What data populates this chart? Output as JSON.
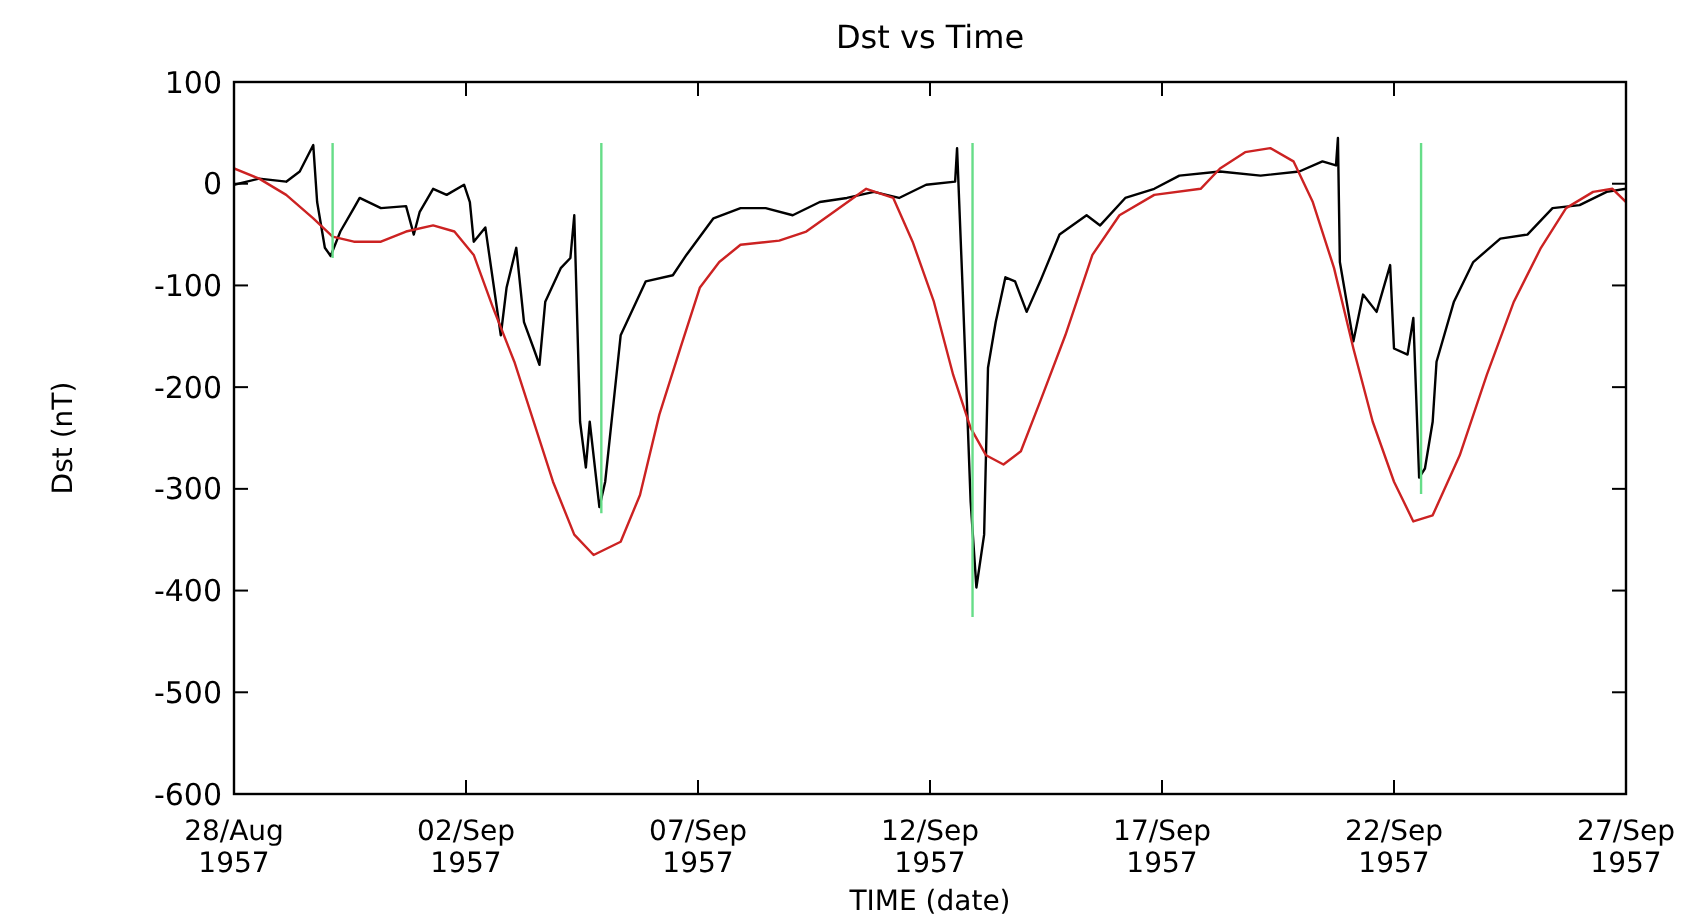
{
  "chart_data": {
    "type": "line",
    "title": "Dst vs Time",
    "xlabel": "TIME (date)",
    "ylabel": "Dst (nT)",
    "xlim": [
      "1957-08-28",
      "1957-09-27"
    ],
    "xticks": [
      {
        "value": "1957-08-28",
        "label": "28/Aug\n1957"
      },
      {
        "value": "1957-09-02",
        "label": "02/Sep\n1957"
      },
      {
        "value": "1957-09-07",
        "label": "07/Sep\n1957"
      },
      {
        "value": "1957-09-12",
        "label": "12/Sep\n1957"
      },
      {
        "value": "1957-09-17",
        "label": "17/Sep\n1957"
      },
      {
        "value": "1957-09-22",
        "label": "22/Sep\n1957"
      },
      {
        "value": "1957-09-27",
        "label": "27/Sep\n1957"
      }
    ],
    "ylim": [
      -600,
      100
    ],
    "yticks": [
      -600,
      -500,
      -400,
      -300,
      -200,
      -100,
      0,
      100
    ],
    "line_style": "solid",
    "marker": "none",
    "series": [
      {
        "color": "#000000",
        "x": [
          "1957-08-28T00:00",
          "1957-08-28T13:00",
          "1957-08-29T03:00",
          "1957-08-29T10:00",
          "1957-08-29T17:00",
          "1957-08-29T19:00",
          "1957-08-29T23:00",
          "1957-08-30T02:00",
          "1957-08-30T07:00",
          "1957-08-30T14:00",
          "1957-08-30T17:00",
          "1957-08-31T04:00",
          "1957-08-31T17:00",
          "1957-08-31T21:00",
          "1957-09-01T00:00",
          "1957-09-01T07:00",
          "1957-09-01T14:00",
          "1957-09-01T23:00",
          "1957-09-02T02:00",
          "1957-09-02T04:00",
          "1957-09-02T10:00",
          "1957-09-02T18:00",
          "1957-09-02T21:00",
          "1957-09-03T02:00",
          "1957-09-03T06:00",
          "1957-09-03T11:00",
          "1957-09-03T14:00",
          "1957-09-03T17:00",
          "1957-09-04T01:00",
          "1957-09-04T06:00",
          "1957-09-04T08:00",
          "1957-09-04T11:00",
          "1957-09-04T14:00",
          "1957-09-04T16:00",
          "1957-09-04T21:00",
          "1957-09-05T00:00",
          "1957-09-05T08:00",
          "1957-09-05T21:00",
          "1957-09-06T11:00",
          "1957-09-06T18:00",
          "1957-09-07T08:00",
          "1957-09-07T22:00",
          "1957-09-08T11:00",
          "1957-09-09T01:00",
          "1957-09-09T15:00",
          "1957-09-10T05:00",
          "1957-09-10T19:00",
          "1957-09-11T08:00",
          "1957-09-11T22:00",
          "1957-09-12T13:00",
          "1957-09-12T14:00",
          "1957-09-12T17:00",
          "1957-09-12T21:00",
          "1957-09-13T00:00",
          "1957-09-13T04:00",
          "1957-09-13T06:00",
          "1957-09-13T10:00",
          "1957-09-13T15:00",
          "1957-09-13T20:00",
          "1957-09-14T02:00",
          "1957-09-14T09:00",
          "1957-09-14T19:00",
          "1957-09-15T09:00",
          "1957-09-15T16:00",
          "1957-09-16T05:00",
          "1957-09-16T20:00",
          "1957-09-17T09:00",
          "1957-09-18T06:00",
          "1957-09-19T03:00",
          "1957-09-19T23:00",
          "1957-09-20T11:00",
          "1957-09-20T18:00",
          "1957-09-20T19:00",
          "1957-09-20T20:00",
          "1957-09-21T03:00",
          "1957-09-21T08:00",
          "1957-09-21T15:00",
          "1957-09-21T22:00",
          "1957-09-22T00:00",
          "1957-09-22T07:00",
          "1957-09-22T10:00",
          "1957-09-22T13:00",
          "1957-09-22T16:00",
          "1957-09-22T20:00",
          "1957-09-22T22:00",
          "1957-09-23T07:00",
          "1957-09-23T17:00",
          "1957-09-24T07:00",
          "1957-09-24T21:00",
          "1957-09-25T10:00",
          "1957-09-26T00:00",
          "1957-09-26T14:00",
          "1957-09-27T00:00"
        ],
        "values": [
          -1,
          5,
          2,
          12,
          38,
          -18,
          -63,
          -71,
          -47,
          -24,
          -14,
          -24,
          -22,
          -50,
          -28,
          -5,
          -11,
          -1,
          -18,
          -57,
          -43,
          -149,
          -102,
          -63,
          -136,
          -162,
          -178,
          -116,
          -83,
          -73,
          -31,
          -234,
          -279,
          -234,
          -318,
          -293,
          -149,
          -96,
          -90,
          -70,
          -34,
          -24,
          -24,
          -31,
          -18,
          -14,
          -8,
          -14,
          -1,
          2,
          35,
          -109,
          -312,
          -397,
          -345,
          -181,
          -136,
          -92,
          -96,
          -126,
          -96,
          -50,
          -31,
          -41,
          -14,
          -5,
          8,
          12,
          8,
          12,
          22,
          18,
          45,
          -77,
          -155,
          -109,
          -126,
          -80,
          -162,
          -168,
          -132,
          -289,
          -280,
          -234,
          -175,
          -116,
          -77,
          -54,
          -50,
          -24,
          -21,
          -8,
          -5
        ]
      },
      {
        "color": "#cc2222",
        "x": [
          "1957-08-28T00:00",
          "1957-08-28T13:00",
          "1957-08-29T03:00",
          "1957-08-29T17:00",
          "1957-08-30T03:00",
          "1957-08-30T14:00",
          "1957-08-31T04:00",
          "1957-08-31T17:00",
          "1957-09-01T07:00",
          "1957-09-01T18:00",
          "1957-09-02T04:00",
          "1957-09-02T14:00",
          "1957-09-03T01:00",
          "1957-09-03T11:00",
          "1957-09-03T21:00",
          "1957-09-04T08:00",
          "1957-09-04T18:00",
          "1957-09-05T08:00",
          "1957-09-05T18:00",
          "1957-09-06T04:00",
          "1957-09-06T15:00",
          "1957-09-07T01:00",
          "1957-09-07T11:00",
          "1957-09-07T22:00",
          "1957-09-08T18:00",
          "1957-09-09T08:00",
          "1957-09-09T22:00",
          "1957-09-10T15:00",
          "1957-09-11T05:00",
          "1957-09-11T15:00",
          "1957-09-12T02:00",
          "1957-09-12T12:00",
          "1957-09-12T21:00",
          "1957-09-13T05:00",
          "1957-09-13T14:00",
          "1957-09-13T23:00",
          "1957-09-14T09:00",
          "1957-09-14T22:00",
          "1957-09-15T12:00",
          "1957-09-16T02:00",
          "1957-09-16T20:00",
          "1957-09-17T20:00",
          "1957-09-18T06:00",
          "1957-09-18T19:00",
          "1957-09-19T08:00",
          "1957-09-19T20:00",
          "1957-09-20T06:00",
          "1957-09-20T17:00",
          "1957-09-21T03:00",
          "1957-09-21T13:00",
          "1957-09-22T00:00",
          "1957-09-22T10:00",
          "1957-09-22T20:00",
          "1957-09-23T10:00",
          "1957-09-24T00:00",
          "1957-09-24T14:00",
          "1957-09-25T04:00",
          "1957-09-25T17:00",
          "1957-09-26T07:00",
          "1957-09-26T17:00",
          "1957-09-27T00:00"
        ],
        "values": [
          15,
          5,
          -11,
          -34,
          -52,
          -57,
          -57,
          -47,
          -41,
          -47,
          -70,
          -122,
          -175,
          -234,
          -293,
          -345,
          -365,
          -352,
          -306,
          -227,
          -161,
          -102,
          -77,
          -60,
          -56,
          -47,
          -28,
          -5,
          -14,
          -57,
          -116,
          -188,
          -240,
          -267,
          -276,
          -263,
          -214,
          -149,
          -70,
          -31,
          -11,
          -5,
          15,
          31,
          35,
          22,
          -18,
          -83,
          -162,
          -234,
          -293,
          -332,
          -326,
          -267,
          -188,
          -116,
          -63,
          -24,
          -8,
          -5,
          -18
        ]
      },
      {
        "color": "#66dd88",
        "x": [
          "1957-08-30T03:00",
          "1957-08-30T03:00"
        ],
        "values": [
          40,
          -73
        ]
      },
      {
        "color": "#66dd88",
        "x": [
          "1957-09-04T22:00",
          "1957-09-04T22:00"
        ],
        "values": [
          40,
          -324
        ]
      },
      {
        "color": "#66dd88",
        "x": [
          "1957-09-12T22:00",
          "1957-09-12T22:00"
        ],
        "values": [
          40,
          -426
        ]
      },
      {
        "color": "#66dd88",
        "x": [
          "1957-09-22T14:00",
          "1957-09-22T14:00"
        ],
        "values": [
          40,
          -305
        ]
      }
    ]
  }
}
